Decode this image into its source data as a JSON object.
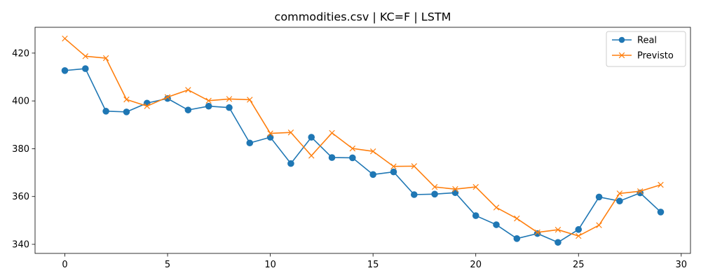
{
  "chart_data": {
    "type": "line",
    "title": "commodities.csv | KC=F | LSTM",
    "xlabel": "",
    "ylabel": "",
    "x": [
      0,
      1,
      2,
      3,
      4,
      5,
      6,
      7,
      8,
      9,
      10,
      11,
      12,
      13,
      14,
      15,
      16,
      17,
      18,
      19,
      20,
      21,
      22,
      23,
      24,
      25,
      26,
      27,
      28,
      29
    ],
    "xlim": [
      -1.45,
      30.45
    ],
    "ylim": [
      336.2,
      430.8
    ],
    "xticks": [
      0,
      5,
      10,
      15,
      20,
      25,
      30
    ],
    "yticks": [
      340,
      360,
      380,
      400,
      420
    ],
    "grid": false,
    "legend_position": "top-right",
    "series": [
      {
        "name": "Real",
        "color": "#1f77b4",
        "marker": "circle",
        "values": [
          412.7,
          413.5,
          395.7,
          395.4,
          399.1,
          401.0,
          396.2,
          397.8,
          397.2,
          382.4,
          384.8,
          373.8,
          384.8,
          376.3,
          376.2,
          369.2,
          370.3,
          360.8,
          361.0,
          361.6,
          352.0,
          348.2,
          342.4,
          344.5,
          340.8,
          346.2,
          359.8,
          358.1,
          361.5,
          353.5
        ]
      },
      {
        "name": "Previsto",
        "color": "#ff7f0e",
        "marker": "x",
        "values": [
          426.1,
          418.7,
          417.9,
          400.6,
          397.8,
          401.6,
          404.6,
          400.1,
          400.8,
          400.5,
          386.4,
          386.8,
          377.1,
          386.6,
          380.1,
          378.9,
          372.6,
          372.7,
          364.0,
          363.1,
          364.0,
          355.4,
          350.8,
          345.0,
          346.1,
          343.5,
          348.0,
          361.3,
          362.2,
          364.9
        ]
      }
    ]
  }
}
